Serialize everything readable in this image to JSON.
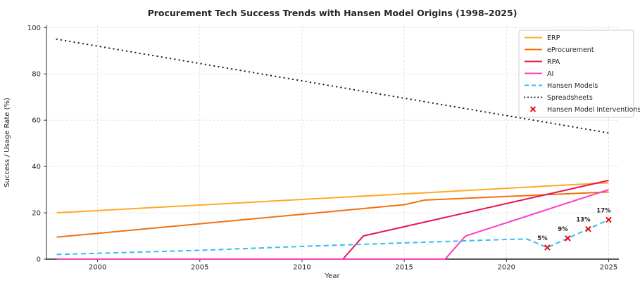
{
  "chart_data": {
    "type": "line",
    "title": "Procurement Tech Success Trends with Hansen Model Origins (1998–2025)",
    "xlabel": "Year",
    "ylabel": "Success / Usage Rate (%)",
    "xlim": [
      1997.5,
      2025.5
    ],
    "ylim": [
      0,
      101
    ],
    "x_ticks": [
      "2000",
      "2005",
      "2010",
      "2015",
      "2020",
      "2025"
    ],
    "x_tick_values": [
      2000,
      2005,
      2010,
      2015,
      2020,
      2025
    ],
    "y_ticks": [
      "0",
      "20",
      "40",
      "60",
      "80",
      "100"
    ],
    "y_tick_values": [
      0,
      20,
      40,
      60,
      80,
      100
    ],
    "grid": true,
    "grid_color": "#dcdcdc",
    "legend_position": "upper right",
    "axis_color": "#595959",
    "tick_label_color": "#262626",
    "series": [
      {
        "name": "ERP",
        "color": "#FFA928",
        "style": "solid",
        "points": [
          [
            1998,
            20
          ],
          [
            2025,
            33
          ]
        ]
      },
      {
        "name": "eProcurement",
        "color": "#F3700E",
        "style": "solid",
        "points": [
          [
            1998,
            9.5
          ],
          [
            2015,
            23.5
          ],
          [
            2016,
            25.5
          ],
          [
            2025,
            29
          ]
        ]
      },
      {
        "name": "RPA",
        "color": "#E8184F",
        "style": "solid",
        "points": [
          [
            1998,
            0
          ],
          [
            2012,
            0
          ],
          [
            2013,
            10
          ],
          [
            2025,
            34
          ]
        ]
      },
      {
        "name": "AI",
        "color": "#FA3EC3",
        "style": "solid",
        "points": [
          [
            1998,
            0
          ],
          [
            2017,
            0
          ],
          [
            2018,
            10
          ],
          [
            2025,
            30
          ]
        ]
      },
      {
        "name": "Hansen Models",
        "color": "#2EC0F2",
        "style": "dashed",
        "points": [
          [
            1998,
            2
          ],
          [
            2005,
            3.8
          ],
          [
            2010,
            5.5
          ],
          [
            2015,
            7
          ],
          [
            2020,
            8.5
          ],
          [
            2021,
            8.7
          ],
          [
            2022,
            5
          ],
          [
            2023,
            9
          ],
          [
            2024,
            13
          ],
          [
            2025,
            17
          ]
        ]
      },
      {
        "name": "Spreadsheets",
        "color": "#1a1a1a",
        "style": "dotted",
        "points": [
          [
            1998,
            95
          ],
          [
            2025,
            54.5
          ]
        ]
      }
    ],
    "interventions": {
      "name": "Hansen Model Interventions",
      "color": "#F00000",
      "marker": "x",
      "points": [
        [
          2022,
          5
        ],
        [
          2023,
          9
        ],
        [
          2024,
          13
        ],
        [
          2025,
          17
        ]
      ],
      "labels": [
        "5%",
        "9%",
        "13%",
        "17%"
      ]
    }
  }
}
